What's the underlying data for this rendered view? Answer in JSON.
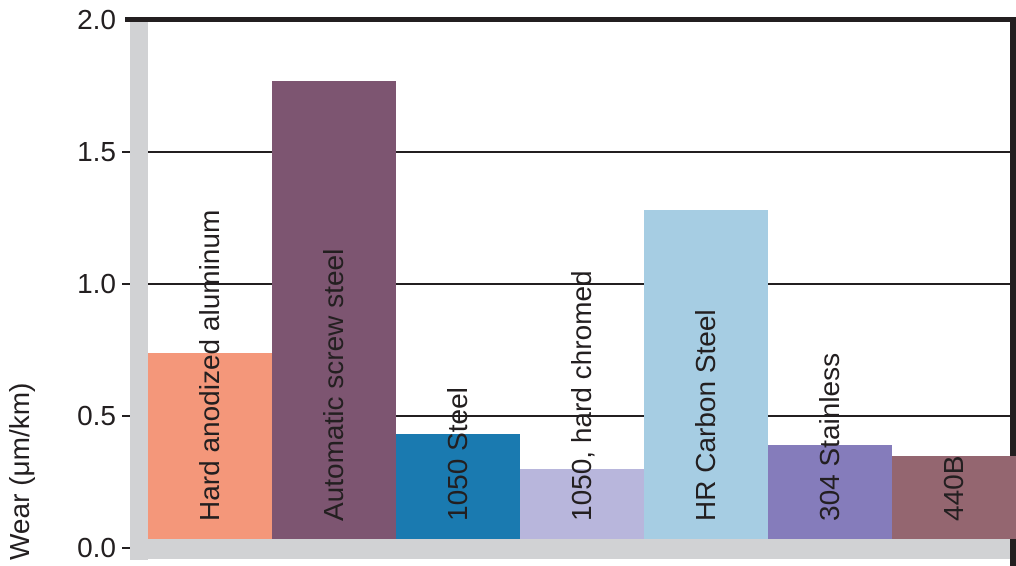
{
  "chart_data": {
    "type": "bar",
    "title": "",
    "xlabel": "",
    "ylabel": "Wear (μm/km)",
    "ylim": [
      0.0,
      2.0
    ],
    "yticks": [
      "0.0",
      "0.5",
      "1.0",
      "1.5",
      "2.0"
    ],
    "grid": true,
    "legend": "none",
    "categories": [
      "Hard anodized aluminum",
      "Automatic screw steel",
      "1050 Steel",
      "1050, hard chromed",
      "HR Carbon Steel",
      "304 Stainless",
      "440B"
    ],
    "values": [
      0.74,
      1.77,
      0.43,
      0.3,
      1.28,
      0.39,
      0.35
    ],
    "colors": [
      "#f4977a",
      "#7d5571",
      "#1a7ab0",
      "#b8b6dc",
      "#a6cde3",
      "#857cbb",
      "#946670"
    ]
  },
  "axis": {
    "ylabel": "Wear (μm/km)",
    "ticks": [
      {
        "label": "2.0",
        "value": 2.0
      },
      {
        "label": "1.5",
        "value": 1.5
      },
      {
        "label": "1.0",
        "value": 1.0
      },
      {
        "label": "0.5",
        "value": 0.5
      },
      {
        "label": "0.0",
        "value": 0.0
      }
    ]
  },
  "bars": [
    {
      "label": "Hard anodized aluminum",
      "value": 0.74,
      "color": "#f4977a"
    },
    {
      "label": "Automatic screw steel",
      "value": 1.77,
      "color": "#7d5571"
    },
    {
      "label": "1050 Steel",
      "value": 0.43,
      "color": "#1a7ab0"
    },
    {
      "label": "1050, hard chromed",
      "value": 0.3,
      "color": "#b8b6dc"
    },
    {
      "label": "HR Carbon Steel",
      "value": 1.28,
      "color": "#a6cde3"
    },
    {
      "label": "304 Stainless",
      "value": 0.39,
      "color": "#857cbb"
    },
    {
      "label": "440B",
      "value": 0.35,
      "color": "#946670"
    }
  ]
}
